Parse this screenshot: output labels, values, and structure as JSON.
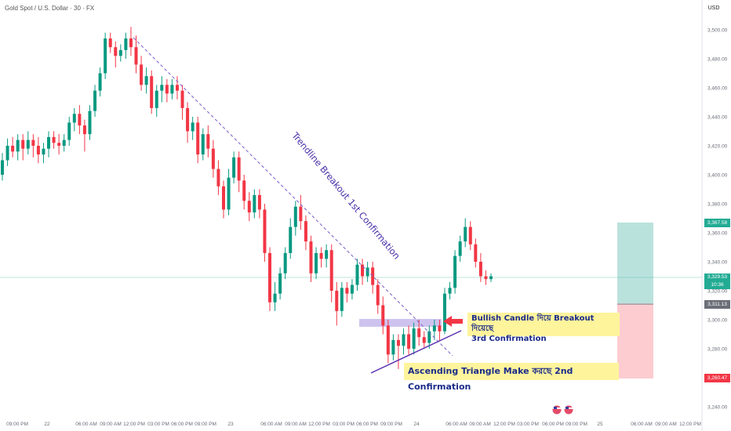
{
  "header": {
    "symbol_title": "Gold Spot / U.S. Dollar · 30 · FX",
    "currency": "USD"
  },
  "chart_data": {
    "type": "candlestick",
    "title": "Gold Spot / U.S. Dollar · 30 · FX",
    "y_ticks": [
      3240,
      3260,
      3280,
      3300,
      3320,
      3340,
      3360,
      3380,
      3400,
      3420,
      3440,
      3460,
      3480,
      3500
    ],
    "y_tick_labels": [
      "3,240.00",
      "3,260.00",
      "3,280.00",
      "3,300.00",
      "3,320.00",
      "3,340.00",
      "3,360.00",
      "3,380.00",
      "3,400.00",
      "3,420.00",
      "3,440.00",
      "3,460.00",
      "3,480.00",
      "3,500.00"
    ],
    "ylim": [
      3232,
      3514
    ],
    "x_ticks": [
      "09:00 PM",
      "22",
      "06:00 AM",
      "09:00 AM",
      "12:00 PM",
      "03:00 PM",
      "06:00 PM",
      "09:00 PM",
      "23",
      "06:00 AM",
      "09:00 AM",
      "12:00 PM",
      "03:00 PM",
      "06:00 PM",
      "09:00 PM",
      "24",
      "06:00 AM",
      "09:00 AM",
      "12:00 PM",
      "03:00 PM",
      "06:00 PM",
      "09:00 PM",
      "25",
      "06:00 AM",
      "09:00 AM",
      "12:00 PM"
    ],
    "price_labels": {
      "target": "3,367.58",
      "current": "3,329.53",
      "countdown": "10:36",
      "entry": "3,311.13",
      "stop": "3,260.47"
    },
    "levels": {
      "target": 3367.58,
      "current": 3329.53,
      "entry": 3311.13,
      "stop": 3260.47
    },
    "colors": {
      "up": "#089981",
      "down": "#f23645",
      "profit_zone": "#b2dfd8",
      "loss_zone": "#fcc6cb",
      "trendline": "#7b5fc7",
      "annotation_bg": "#fef49c",
      "annotation_text": "#1b2b8a"
    },
    "annotations": {
      "trendline_label": "Trendline Breakout 1st Confirmation",
      "breakout_label_line1": "Bullish Candle দিয়ে Breakout দিয়েছে",
      "breakout_label_line2": "3rd Confirmation",
      "triangle_label": "Ascending Triangle Make করছে 2nd Confirmation"
    },
    "candles": [
      [
        3400,
        3410,
        3396,
        3415
      ],
      [
        3410,
        3420,
        3406,
        3425
      ],
      [
        3420,
        3416,
        3412,
        3426
      ],
      [
        3416,
        3424,
        3410,
        3428
      ],
      [
        3424,
        3418,
        3410,
        3428
      ],
      [
        3418,
        3424,
        3414,
        3430
      ],
      [
        3424,
        3420,
        3412,
        3428
      ],
      [
        3420,
        3414,
        3408,
        3426
      ],
      [
        3414,
        3418,
        3408,
        3422
      ],
      [
        3418,
        3426,
        3412,
        3430
      ],
      [
        3426,
        3422,
        3418,
        3430
      ],
      [
        3422,
        3420,
        3414,
        3428
      ],
      [
        3420,
        3424,
        3416,
        3428
      ],
      [
        3424,
        3436,
        3420,
        3440
      ],
      [
        3436,
        3442,
        3430,
        3446
      ],
      [
        3442,
        3434,
        3428,
        3448
      ],
      [
        3434,
        3428,
        3416,
        3438
      ],
      [
        3428,
        3444,
        3424,
        3448
      ],
      [
        3444,
        3458,
        3440,
        3462
      ],
      [
        3458,
        3470,
        3454,
        3474
      ],
      [
        3470,
        3494,
        3466,
        3498
      ],
      [
        3494,
        3488,
        3484,
        3498
      ],
      [
        3488,
        3482,
        3474,
        3492
      ],
      [
        3482,
        3486,
        3478,
        3490
      ],
      [
        3486,
        3494,
        3480,
        3498
      ],
      [
        3494,
        3488,
        3482,
        3502
      ],
      [
        3488,
        3476,
        3470,
        3496
      ],
      [
        3476,
        3462,
        3458,
        3482
      ],
      [
        3462,
        3468,
        3456,
        3474
      ],
      [
        3468,
        3446,
        3442,
        3472
      ],
      [
        3446,
        3458,
        3440,
        3462
      ],
      [
        3458,
        3462,
        3450,
        3468
      ],
      [
        3462,
        3456,
        3450,
        3466
      ],
      [
        3456,
        3462,
        3452,
        3466
      ],
      [
        3462,
        3458,
        3452,
        3468
      ],
      [
        3458,
        3446,
        3438,
        3462
      ],
      [
        3446,
        3430,
        3422,
        3450
      ],
      [
        3430,
        3436,
        3424,
        3440
      ],
      [
        3436,
        3414,
        3408,
        3440
      ],
      [
        3414,
        3428,
        3410,
        3432
      ],
      [
        3428,
        3418,
        3412,
        3434
      ],
      [
        3418,
        3404,
        3398,
        3424
      ],
      [
        3404,
        3392,
        3386,
        3410
      ],
      [
        3392,
        3376,
        3370,
        3396
      ],
      [
        3376,
        3398,
        3372,
        3404
      ],
      [
        3398,
        3412,
        3394,
        3416
      ],
      [
        3412,
        3396,
        3388,
        3416
      ],
      [
        3396,
        3382,
        3376,
        3400
      ],
      [
        3382,
        3374,
        3368,
        3388
      ],
      [
        3374,
        3386,
        3370,
        3390
      ],
      [
        3386,
        3376,
        3370,
        3390
      ],
      [
        3376,
        3346,
        3340,
        3380
      ],
      [
        3346,
        3312,
        3306,
        3350
      ],
      [
        3312,
        3318,
        3306,
        3326
      ],
      [
        3318,
        3332,
        3314,
        3336
      ],
      [
        3332,
        3346,
        3328,
        3350
      ],
      [
        3346,
        3364,
        3342,
        3370
      ],
      [
        3364,
        3378,
        3358,
        3382
      ],
      [
        3378,
        3368,
        3362,
        3386
      ],
      [
        3368,
        3354,
        3348,
        3372
      ],
      [
        3354,
        3332,
        3326,
        3358
      ],
      [
        3332,
        3346,
        3328,
        3350
      ],
      [
        3346,
        3342,
        3336,
        3350
      ],
      [
        3342,
        3348,
        3336,
        3352
      ],
      [
        3348,
        3320,
        3312,
        3352
      ],
      [
        3320,
        3306,
        3296,
        3326
      ],
      [
        3306,
        3322,
        3302,
        3326
      ],
      [
        3322,
        3318,
        3312,
        3326
      ],
      [
        3318,
        3324,
        3314,
        3328
      ],
      [
        3324,
        3338,
        3320,
        3342
      ],
      [
        3338,
        3330,
        3324,
        3342
      ],
      [
        3330,
        3336,
        3326,
        3340
      ],
      [
        3336,
        3324,
        3318,
        3340
      ],
      [
        3324,
        3310,
        3304,
        3328
      ],
      [
        3310,
        3296,
        3290,
        3316
      ],
      [
        3296,
        3276,
        3270,
        3300
      ],
      [
        3276,
        3286,
        3272,
        3290
      ],
      [
        3286,
        3282,
        3266,
        3290
      ],
      [
        3282,
        3290,
        3276,
        3294
      ],
      [
        3290,
        3280,
        3276,
        3296
      ],
      [
        3280,
        3294,
        3276,
        3298
      ],
      [
        3294,
        3288,
        3282,
        3300
      ],
      [
        3288,
        3284,
        3280,
        3292
      ],
      [
        3284,
        3292,
        3280,
        3296
      ],
      [
        3292,
        3296,
        3286,
        3300
      ],
      [
        3296,
        3292,
        3286,
        3300
      ],
      [
        3292,
        3318,
        3290,
        3322
      ],
      [
        3318,
        3322,
        3314,
        3326
      ],
      [
        3322,
        3344,
        3318,
        3348
      ],
      [
        3344,
        3354,
        3340,
        3358
      ],
      [
        3354,
        3364,
        3350,
        3370
      ],
      [
        3364,
        3352,
        3348,
        3368
      ],
      [
        3352,
        3340,
        3336,
        3356
      ],
      [
        3340,
        3330,
        3326,
        3346
      ],
      [
        3330,
        3328,
        3324,
        3334
      ],
      [
        3328,
        3330,
        3326,
        3332
      ]
    ]
  }
}
